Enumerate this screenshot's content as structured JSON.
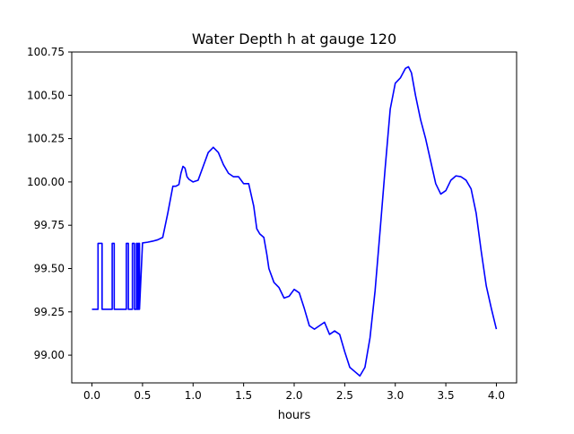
{
  "chart_data": {
    "type": "line",
    "title": "Water Depth h at gauge 120",
    "xlabel": "hours",
    "ylabel": "",
    "xlim": [
      -0.2,
      4.2
    ],
    "ylim": [
      98.84,
      100.75
    ],
    "xticks": [
      0.0,
      0.5,
      1.0,
      1.5,
      2.0,
      2.5,
      3.0,
      3.5,
      4.0
    ],
    "xtick_labels": [
      "0.0",
      "0.5",
      "1.0",
      "1.5",
      "2.0",
      "2.5",
      "3.0",
      "3.5",
      "4.0"
    ],
    "yticks": [
      99.0,
      99.25,
      99.5,
      99.75,
      100.0,
      100.25,
      100.5,
      100.75
    ],
    "ytick_labels": [
      "99.00",
      "99.25",
      "99.50",
      "99.75",
      "100.00",
      "100.25",
      "100.50",
      "100.75"
    ],
    "grid": false,
    "line_color": "#0000ff",
    "series": [
      {
        "name": "",
        "x": [
          0.0,
          0.06,
          0.06,
          0.1,
          0.1,
          0.2,
          0.2,
          0.22,
          0.22,
          0.34,
          0.34,
          0.36,
          0.36,
          0.4,
          0.4,
          0.42,
          0.42,
          0.44,
          0.44,
          0.45,
          0.45,
          0.46,
          0.46,
          0.47,
          0.47,
          0.5,
          0.55,
          0.6,
          0.65,
          0.7,
          0.75,
          0.8,
          0.83,
          0.86,
          0.88,
          0.9,
          0.92,
          0.94,
          0.96,
          1.0,
          1.05,
          1.1,
          1.15,
          1.2,
          1.25,
          1.3,
          1.35,
          1.4,
          1.45,
          1.5,
          1.55,
          1.6,
          1.63,
          1.66,
          1.7,
          1.73,
          1.75,
          1.8,
          1.85,
          1.9,
          1.95,
          2.0,
          2.05,
          2.1,
          2.15,
          2.2,
          2.25,
          2.3,
          2.35,
          2.4,
          2.45,
          2.5,
          2.55,
          2.6,
          2.65,
          2.7,
          2.75,
          2.8,
          2.85,
          2.9,
          2.95,
          3.0,
          3.05,
          3.1,
          3.13,
          3.16,
          3.2,
          3.25,
          3.3,
          3.35,
          3.4,
          3.45,
          3.5,
          3.55,
          3.6,
          3.65,
          3.7,
          3.75,
          3.8,
          3.85,
          3.9,
          3.95,
          4.0
        ],
        "y": [
          99.265,
          99.265,
          99.645,
          99.645,
          99.265,
          99.265,
          99.645,
          99.645,
          99.265,
          99.265,
          99.645,
          99.645,
          99.265,
          99.265,
          99.645,
          99.645,
          99.265,
          99.265,
          99.645,
          99.645,
          99.265,
          99.265,
          99.645,
          99.645,
          99.265,
          99.648,
          99.652,
          99.658,
          99.666,
          99.68,
          99.82,
          99.975,
          99.975,
          99.985,
          100.05,
          100.09,
          100.08,
          100.03,
          100.015,
          100.0,
          100.01,
          100.09,
          100.17,
          100.2,
          100.17,
          100.1,
          100.05,
          100.03,
          100.03,
          99.99,
          99.99,
          99.86,
          99.73,
          99.7,
          99.68,
          99.58,
          99.5,
          99.42,
          99.39,
          99.33,
          99.34,
          99.38,
          99.36,
          99.27,
          99.17,
          99.15,
          99.17,
          99.19,
          99.12,
          99.14,
          99.12,
          99.02,
          98.93,
          98.905,
          98.88,
          98.93,
          99.1,
          99.37,
          99.72,
          100.08,
          100.42,
          100.57,
          100.6,
          100.655,
          100.665,
          100.63,
          100.5,
          100.36,
          100.25,
          100.12,
          99.99,
          99.93,
          99.95,
          100.01,
          100.035,
          100.03,
          100.01,
          99.96,
          99.82,
          99.6,
          99.4,
          99.27,
          99.15
        ]
      }
    ]
  }
}
